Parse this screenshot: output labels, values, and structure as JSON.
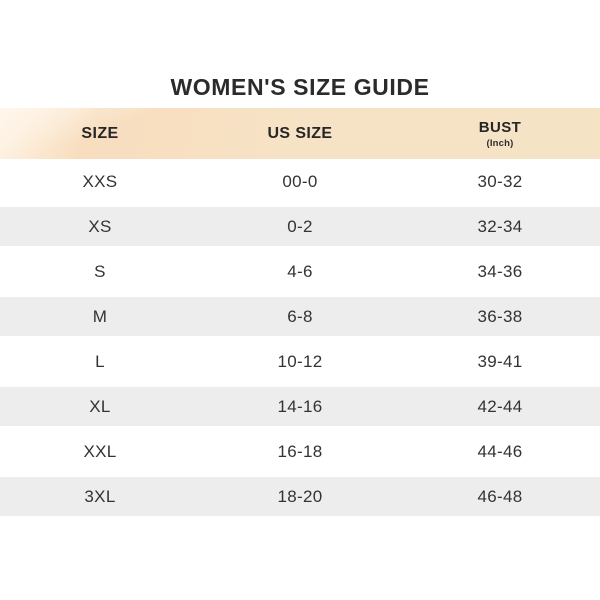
{
  "title": "WOMEN'S SIZE GUIDE",
  "table": {
    "columns": [
      {
        "label": "SIZE"
      },
      {
        "label": "US SIZE"
      },
      {
        "label": "BUST",
        "sub": "(Inch)"
      }
    ],
    "rows": [
      {
        "size": "XXS",
        "us": "00-0",
        "bust": "30-32"
      },
      {
        "size": "XS",
        "us": "0-2",
        "bust": "32-34"
      },
      {
        "size": "S",
        "us": "4-6",
        "bust": "34-36"
      },
      {
        "size": "M",
        "us": "6-8",
        "bust": "36-38"
      },
      {
        "size": "L",
        "us": "10-12",
        "bust": "39-41"
      },
      {
        "size": "XL",
        "us": "14-16",
        "bust": "42-44"
      },
      {
        "size": "XXL",
        "us": "16-18",
        "bust": "44-46"
      },
      {
        "size": "3XL",
        "us": "18-20",
        "bust": "46-48"
      }
    ]
  },
  "colors": {
    "header_bg": "#f6e2c5",
    "header_bg_deep": "#f8dfc1",
    "header_bg_light": "#fcf0e0",
    "row_alt_bg": "#ededed",
    "title_text": "#2b2b2b",
    "cell_text": "#333333"
  }
}
